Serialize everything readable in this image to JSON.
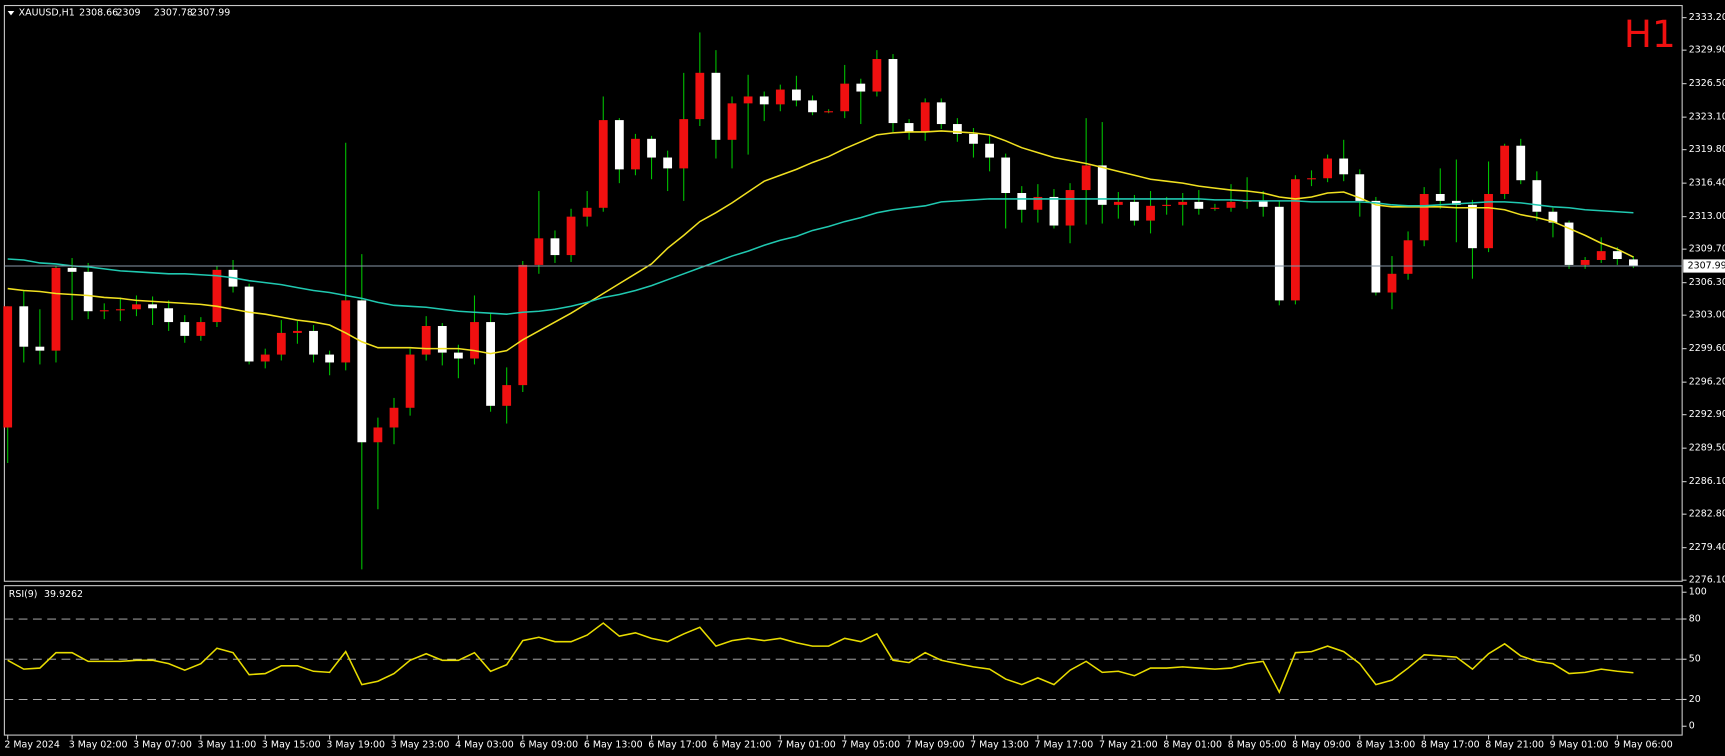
{
  "chart_data": [
    {
      "type": "candlestick",
      "title": "XAUUSD,H1",
      "badge": "H1",
      "up_color": "#f01010",
      "down_color": "#ffffff",
      "wick_color": "#00c000",
      "categories": [
        "2 May 2024",
        null,
        null,
        null,
        "3 May 02:00",
        null,
        null,
        null,
        "3 May 07:00",
        null,
        null,
        null,
        "3 May 11:00",
        null,
        null,
        null,
        "3 May 15:00",
        null,
        null,
        null,
        "3 May 19:00",
        null,
        null,
        null,
        "3 May 23:00",
        null,
        null,
        null,
        "4 May 03:00",
        null,
        null,
        null,
        "6 May 09:00",
        null,
        null,
        null,
        "6 May 13:00",
        null,
        null,
        null,
        "6 May 17:00",
        null,
        null,
        null,
        "6 May 21:00",
        null,
        null,
        null,
        "7 May 01:00",
        null,
        null,
        null,
        "7 May 05:00",
        null,
        null,
        null,
        "7 May 09:00",
        null,
        null,
        null,
        "7 May 13:00",
        null,
        null,
        null,
        "7 May 17:00",
        null,
        null,
        null,
        "7 May 21:00",
        null,
        null,
        null,
        "8 May 01:00",
        null,
        null,
        null,
        "8 May 05:00",
        null,
        null,
        null,
        "8 May 09:00",
        null,
        null,
        null,
        "8 May 13:00",
        null,
        null,
        null,
        "8 May 17:00",
        null,
        null,
        null,
        "8 May 21:00",
        null,
        null,
        null,
        "9 May 01:00",
        null,
        null,
        null,
        "9 May 06:00",
        null
      ],
      "open": [
        2291.6,
        2303.9,
        2299.8,
        2299.4,
        2307.8,
        2307.4,
        2303.4,
        2303.5,
        2303.6,
        2304.1,
        2303.7,
        2302.3,
        2300.9,
        2302.3,
        2307.6,
        2305.9,
        2298.3,
        2299.0,
        2301.2,
        2301.4,
        2299.0,
        2298.2,
        2304.5,
        2290.1,
        2291.6,
        2293.6,
        2299.0,
        2301.9,
        2299.2,
        2298.6,
        2302.3,
        2293.8,
        2295.9,
        2308.1,
        2310.8,
        2309.1,
        2313.0,
        2313.9,
        2322.8,
        2317.8,
        2320.9,
        2319.0,
        2317.9,
        2322.9,
        2327.6,
        2320.8,
        2324.5,
        2325.2,
        2324.4,
        2325.9,
        2324.8,
        2323.6,
        2323.7,
        2326.5,
        2325.7,
        2329.0,
        2322.5,
        2321.6,
        2324.6,
        2322.4,
        2321.4,
        2320.4,
        2319.0,
        2315.4,
        2313.7,
        2315.0,
        2312.1,
        2315.7,
        2318.2,
        2314.2,
        2314.5,
        2312.6,
        2314.1,
        2314.2,
        2314.5,
        2313.8,
        2313.9,
        2314.5,
        2314.6,
        2314.0,
        2304.5,
        2316.8,
        2316.9,
        2318.9,
        2317.3,
        2314.6,
        2305.3,
        2307.2,
        2310.6,
        2315.3,
        2314.6,
        2314.2,
        2309.8,
        2315.3,
        2320.2,
        2316.7,
        2313.5,
        2312.4,
        2308.1,
        2308.6,
        2309.5,
        2308.66
      ],
      "high": [
        2303.9,
        2305.5,
        2303.6,
        2308.0,
        2308.8,
        2308.3,
        2304.2,
        2304.8,
        2305.0,
        2304.9,
        2304.5,
        2303.0,
        2302.8,
        2308.0,
        2308.6,
        2306.2,
        2299.6,
        2302.5,
        2302.4,
        2302.0,
        2299.4,
        2320.5,
        2309.2,
        2292.6,
        2294.6,
        2299.6,
        2302.9,
        2302.2,
        2300.0,
        2305.0,
        2303.2,
        2297.7,
        2308.5,
        2315.6,
        2311.6,
        2313.8,
        2315.6,
        2325.2,
        2323.0,
        2321.4,
        2321.2,
        2319.7,
        2327.6,
        2331.7,
        2329.9,
        2325.2,
        2327.4,
        2325.7,
        2326.4,
        2327.3,
        2325.3,
        2323.9,
        2328.4,
        2327.0,
        2329.9,
        2329.5,
        2322.9,
        2325.0,
        2325.0,
        2323.0,
        2322.0,
        2321.3,
        2319.4,
        2316.1,
        2316.3,
        2315.8,
        2316.4,
        2323.0,
        2322.6,
        2315.5,
        2315.2,
        2315.6,
        2315.0,
        2315.4,
        2315.7,
        2314.3,
        2316.3,
        2317.0,
        2315.6,
        2314.6,
        2317.2,
        2317.7,
        2319.3,
        2320.8,
        2317.8,
        2315.0,
        2309.0,
        2311.5,
        2316.0,
        2317.9,
        2318.8,
        2314.7,
        2318.6,
        2320.4,
        2320.9,
        2317.6,
        2313.9,
        2312.6,
        2308.9,
        2310.9,
        2309.9,
        2309.0
      ],
      "low": [
        2288.0,
        2298.2,
        2298.0,
        2298.2,
        2302.5,
        2302.6,
        2302.6,
        2302.4,
        2302.9,
        2302.0,
        2301.4,
        2300.2,
        2300.4,
        2301.8,
        2305.3,
        2298.0,
        2297.6,
        2298.4,
        2300.1,
        2298.2,
        2296.9,
        2297.4,
        2277.2,
        2283.3,
        2289.9,
        2292.8,
        2298.4,
        2297.9,
        2296.6,
        2298.0,
        2293.2,
        2292.0,
        2295.2,
        2307.2,
        2308.3,
        2308.4,
        2312.0,
        2313.5,
        2316.4,
        2317.2,
        2316.8,
        2315.6,
        2314.6,
        2322.2,
        2318.9,
        2317.9,
        2319.3,
        2322.7,
        2323.7,
        2324.2,
        2323.3,
        2323.5,
        2323.0,
        2322.4,
        2325.2,
        2321.6,
        2320.8,
        2320.7,
        2321.9,
        2320.6,
        2319.0,
        2317.6,
        2311.8,
        2312.4,
        2312.4,
        2311.8,
        2310.3,
        2312.2,
        2312.3,
        2312.8,
        2312.1,
        2311.3,
        2313.2,
        2312.1,
        2313.2,
        2313.6,
        2313.5,
        2313.8,
        2313.0,
        2304.0,
        2304.1,
        2316.1,
        2316.5,
        2316.6,
        2313.0,
        2305.0,
        2303.6,
        2306.6,
        2310.0,
        2313.8,
        2310.4,
        2306.7,
        2309.4,
        2314.8,
        2316.3,
        2312.6,
        2310.9,
        2307.7,
        2307.7,
        2308.3,
        2308.1,
        2307.78
      ],
      "close": [
        2303.9,
        2299.8,
        2299.4,
        2307.8,
        2307.4,
        2303.4,
        2303.5,
        2303.6,
        2304.1,
        2303.7,
        2302.3,
        2300.9,
        2302.3,
        2307.6,
        2305.9,
        2298.3,
        2299.0,
        2301.2,
        2301.4,
        2299.0,
        2298.2,
        2304.5,
        2290.1,
        2291.6,
        2293.6,
        2299.0,
        2301.9,
        2299.2,
        2298.6,
        2302.3,
        2293.8,
        2295.9,
        2308.1,
        2310.8,
        2309.1,
        2313.0,
        2313.9,
        2322.8,
        2317.8,
        2320.9,
        2319.0,
        2317.9,
        2322.9,
        2327.6,
        2320.8,
        2324.5,
        2325.2,
        2324.4,
        2325.9,
        2324.8,
        2323.6,
        2323.7,
        2326.5,
        2325.7,
        2329.0,
        2322.5,
        2321.6,
        2324.6,
        2322.4,
        2321.4,
        2320.4,
        2319.0,
        2315.4,
        2313.7,
        2315.0,
        2312.1,
        2315.7,
        2318.2,
        2314.2,
        2314.5,
        2312.6,
        2314.1,
        2314.2,
        2314.5,
        2313.8,
        2313.9,
        2314.5,
        2314.6,
        2314.0,
        2304.5,
        2316.8,
        2316.9,
        2318.9,
        2317.3,
        2314.6,
        2305.3,
        2307.2,
        2310.6,
        2315.3,
        2314.6,
        2314.2,
        2309.8,
        2315.3,
        2320.2,
        2316.7,
        2313.5,
        2312.4,
        2308.1,
        2308.6,
        2309.5,
        2308.7,
        2307.99
      ],
      "overlays": [
        {
          "color": "#f0e020",
          "values": [
            2305.7,
            2305.5,
            2305.4,
            2305.2,
            2305.1,
            2305.0,
            2304.8,
            2304.7,
            2304.5,
            2304.4,
            2304.3,
            2304.2,
            2304.1,
            2303.9,
            2303.6,
            2303.3,
            2303.1,
            2302.8,
            2302.5,
            2302.3,
            2302.0,
            2301.2,
            2300.3,
            2299.7,
            2299.7,
            2299.7,
            2299.6,
            2299.6,
            2299.6,
            2299.4,
            2299.1,
            2299.4,
            2300.5,
            2301.4,
            2302.3,
            2303.2,
            2304.2,
            2305.2,
            2306.2,
            2307.2,
            2308.2,
            2309.8,
            2311.1,
            2312.5,
            2313.4,
            2314.4,
            2315.5,
            2316.6,
            2317.2,
            2317.8,
            2318.5,
            2319.1,
            2319.9,
            2320.6,
            2321.3,
            2321.5,
            2321.6,
            2321.6,
            2321.7,
            2321.6,
            2321.5,
            2321.3,
            2320.7,
            2320.0,
            2319.5,
            2319.0,
            2318.7,
            2318.4,
            2318.0,
            2317.6,
            2317.2,
            2316.8,
            2316.6,
            2316.4,
            2316.1,
            2315.9,
            2315.7,
            2315.6,
            2315.4,
            2315.0,
            2314.8,
            2315.0,
            2315.4,
            2315.5,
            2314.9,
            2314.2,
            2314.0,
            2314.0,
            2314.0,
            2314.0,
            2313.9,
            2313.9,
            2313.9,
            2313.7,
            2313.2,
            2312.9,
            2312.5,
            2311.8,
            2311.1,
            2310.3,
            2309.7,
            2308.9
          ]
        },
        {
          "color": "#20c8b0",
          "values": [
            2308.7,
            2308.6,
            2308.3,
            2308.2,
            2308.0,
            2307.9,
            2307.7,
            2307.5,
            2307.4,
            2307.3,
            2307.2,
            2307.2,
            2307.1,
            2307.0,
            2306.8,
            2306.5,
            2306.3,
            2306.1,
            2305.8,
            2305.5,
            2305.3,
            2305.0,
            2304.7,
            2304.3,
            2304.0,
            2303.9,
            2303.8,
            2303.6,
            2303.4,
            2303.3,
            2303.2,
            2303.1,
            2303.3,
            2303.4,
            2303.6,
            2303.9,
            2304.3,
            2304.8,
            2305.1,
            2305.5,
            2306.0,
            2306.6,
            2307.2,
            2307.8,
            2308.4,
            2309.0,
            2309.5,
            2310.1,
            2310.6,
            2311.0,
            2311.6,
            2312.0,
            2312.5,
            2312.9,
            2313.4,
            2313.7,
            2313.9,
            2314.1,
            2314.5,
            2314.6,
            2314.7,
            2314.8,
            2314.8,
            2314.8,
            2314.8,
            2314.8,
            2314.8,
            2314.8,
            2314.8,
            2314.8,
            2314.8,
            2314.8,
            2314.8,
            2314.8,
            2314.8,
            2314.7,
            2314.7,
            2314.6,
            2314.6,
            2314.6,
            2314.6,
            2314.5,
            2314.5,
            2314.5,
            2314.5,
            2314.4,
            2314.2,
            2314.1,
            2314.1,
            2314.2,
            2314.3,
            2314.4,
            2314.5,
            2314.5,
            2314.4,
            2314.2,
            2314.0,
            2313.9,
            2313.7,
            2313.6,
            2313.5,
            2313.4
          ]
        }
      ],
      "ylim": [
        2275.99,
        2334.43
      ],
      "yticks": [
        {
          "value": 2333.2,
          "label": "2333.20"
        },
        {
          "value": 2329.9,
          "label": "2329.90"
        },
        {
          "value": 2326.5,
          "label": "2326.50"
        },
        {
          "value": 2323.1,
          "label": "2323.10"
        },
        {
          "value": 2319.8,
          "label": "2319.80"
        },
        {
          "value": 2316.4,
          "label": "2316.40"
        },
        {
          "value": 2313.0,
          "label": "2313.00"
        },
        {
          "value": 2309.7,
          "label": "2309.70"
        },
        {
          "value": 2306.3,
          "label": "2306.30"
        },
        {
          "value": 2303.0,
          "label": "2303.00"
        },
        {
          "value": 2299.6,
          "label": "2299.60"
        },
        {
          "value": 2296.2,
          "label": "2296.20"
        },
        {
          "value": 2292.9,
          "label": "2292.90"
        },
        {
          "value": 2289.5,
          "label": "2289.50"
        },
        {
          "value": 2286.1,
          "label": "2286.10"
        },
        {
          "value": 2282.8,
          "label": "2282.80"
        },
        {
          "value": 2279.4,
          "label": "2279.40"
        },
        {
          "value": 2276.1,
          "label": "2276.10"
        }
      ]
    },
    {
      "type": "line",
      "title": "RSI(9)",
      "color": "#e8dc00",
      "values": [
        49.2,
        42.6,
        43.4,
        54.9,
        54.9,
        48.4,
        48.4,
        48.4,
        49.2,
        49.2,
        46.7,
        41.8,
        46.7,
        58.2,
        54.9,
        38.5,
        39.3,
        45.1,
        45.1,
        41.0,
        40.2,
        55.7,
        31.1,
        33.6,
        39.3,
        49.2,
        54.1,
        49.2,
        49.2,
        54.9,
        41.0,
        45.9,
        63.9,
        66.4,
        63.1,
        63.1,
        68.0,
        77.0,
        67.2,
        69.7,
        65.6,
        63.1,
        68.9,
        73.8,
        59.8,
        63.9,
        65.6,
        63.9,
        65.6,
        62.3,
        59.8,
        59.8,
        65.6,
        63.1,
        68.9,
        49.2,
        47.5,
        54.9,
        49.2,
        46.7,
        44.3,
        42.6,
        35.2,
        31.1,
        36.1,
        31.1,
        41.8,
        48.4,
        40.2,
        41.0,
        37.7,
        43.4,
        43.4,
        44.3,
        43.4,
        42.6,
        43.4,
        46.7,
        48.4,
        25.4,
        54.9,
        55.7,
        59.8,
        55.7,
        46.7,
        31.1,
        34.4,
        43.4,
        53.3,
        52.5,
        51.6,
        42.6,
        54.1,
        61.5,
        52.5,
        48.4,
        46.7,
        39.3,
        40.2,
        42.6,
        41.0,
        39.9262
      ],
      "ylim": [
        -6.6,
        104.9
      ],
      "yticks": [
        0,
        20,
        50,
        80,
        100
      ],
      "levels": [
        20,
        50,
        80
      ]
    }
  ]
}
